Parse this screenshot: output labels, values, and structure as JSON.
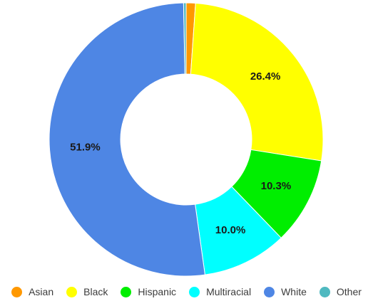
{
  "chart_data": {
    "type": "pie",
    "donut": true,
    "categories": [
      "Asian",
      "Black",
      "Hispanic",
      "Multiracial",
      "White",
      "Other"
    ],
    "values": [
      1.1,
      26.4,
      10.3,
      10.0,
      51.9,
      0.3
    ],
    "value_labels": [
      "",
      "26.4%",
      "10.3%",
      "10.0%",
      "51.9%",
      ""
    ],
    "colors": [
      "#ff9800",
      "#ffff00",
      "#00ee00",
      "#00ffff",
      "#4e86e4",
      "#4fb9c0"
    ],
    "legend_position": "bottom"
  }
}
